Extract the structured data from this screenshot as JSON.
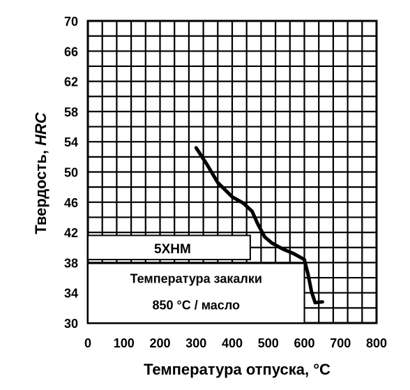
{
  "chart_data": {
    "type": "line",
    "xlabel": "Температура отпуска, °C",
    "ylabel_prefix": "Твердость, ",
    "ylabel_unit": "HRC",
    "xlim": [
      0,
      800
    ],
    "ylim": [
      30,
      70
    ],
    "x_ticks": [
      "0",
      "100",
      "200",
      "300",
      "400",
      "500",
      "600",
      "700",
      "800"
    ],
    "y_ticks": [
      "30",
      "34",
      "38",
      "42",
      "46",
      "50",
      "54",
      "58",
      "62",
      "66",
      "70"
    ],
    "grid": true,
    "steel_grade": "5ХНМ",
    "annotation_line1": "Температура закалки",
    "annotation_line2": "850 °С / масло",
    "series": [
      {
        "x": [
          300,
          330,
          360,
          400,
          430,
          455,
          470,
          490,
          510,
          540,
          570,
          600,
          610,
          620,
          630,
          650
        ],
        "y": [
          53.2,
          51,
          48.6,
          46.7,
          45.9,
          44.8,
          43.2,
          41.4,
          40.6,
          39.8,
          39.2,
          38.4,
          36.5,
          34.1,
          32.7,
          32.8
        ]
      }
    ]
  }
}
